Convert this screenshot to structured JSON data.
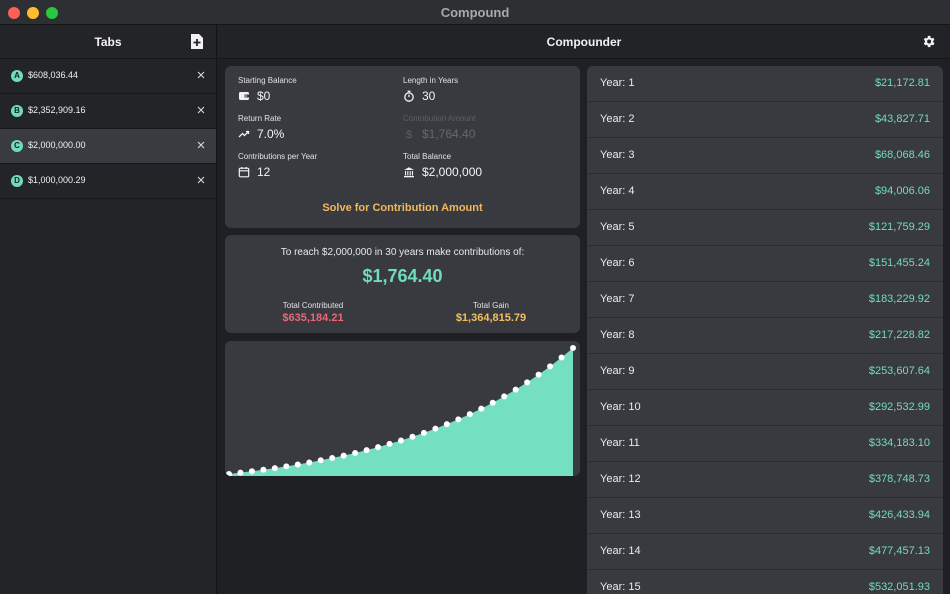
{
  "window": {
    "title": "Compound"
  },
  "sidebar": {
    "title": "Tabs",
    "tabs": [
      {
        "badge": "A",
        "label": "$608,036.44",
        "selected": false
      },
      {
        "badge": "B",
        "label": "$2,352,909.16",
        "selected": false
      },
      {
        "badge": "C",
        "label": "$2,000,000.00",
        "selected": true
      },
      {
        "badge": "D",
        "label": "$1,000,000.29",
        "selected": false
      }
    ]
  },
  "main": {
    "title": "Compounder"
  },
  "inputs": {
    "starting_balance": {
      "label": "Starting Balance",
      "value": "$0",
      "icon": "wallet-icon"
    },
    "length_years": {
      "label": "Length in Years",
      "value": "30",
      "icon": "stopwatch-icon"
    },
    "return_rate": {
      "label": "Return Rate",
      "value": "7.0%",
      "icon": "trend-up-icon"
    },
    "contribution_amount": {
      "label": "Contribution Amount",
      "value": "$1,764.40",
      "icon": "dollar-icon",
      "disabled": true
    },
    "contributions_per_year": {
      "label": "Contributions per Year",
      "value": "12",
      "icon": "calendar-icon"
    },
    "total_balance": {
      "label": "Total Balance",
      "value": "$2,000,000",
      "icon": "bank-icon"
    },
    "solve_label": "Solve for Contribution Amount"
  },
  "result": {
    "description": "To reach $2,000,000 in 30 years make contributions of:",
    "amount": "$1,764.40",
    "total_contributed_label": "Total Contributed",
    "total_contributed": "$635,184.21",
    "total_gain_label": "Total Gain",
    "total_gain": "$1,364,815.79"
  },
  "chart_data": {
    "type": "area",
    "x": [
      0,
      1,
      2,
      3,
      4,
      5,
      6,
      7,
      8,
      9,
      10,
      11,
      12,
      13,
      14,
      15,
      16,
      17,
      18,
      19,
      20,
      21,
      22,
      23,
      24,
      25,
      26,
      27,
      28,
      29,
      30
    ],
    "values": [
      0,
      21172.81,
      43827.71,
      68068.46,
      94006.06,
      121759.29,
      151455.24,
      183229.92,
      217228.82,
      253607.64,
      292532.99,
      334183.1,
      378748.73,
      426433.94,
      477457.13,
      532051.93,
      590469.71,
      652979.65,
      719861.35,
      791425.77,
      868004.31,
      949947.57,
      1037624.35,
      1131435.52,
      1231813.17,
      1339215.61,
      1454136.37,
      1577104.08,
      1708689.91,
      1849491.35,
      2000000.0
    ],
    "ylim": [
      0,
      2000000
    ],
    "grid": false,
    "colors": {
      "fill": "#75dfc2",
      "points": "#ffffff"
    }
  },
  "years": [
    {
      "label": "Year: 1",
      "value": "$21,172.81"
    },
    {
      "label": "Year: 2",
      "value": "$43,827.71"
    },
    {
      "label": "Year: 3",
      "value": "$68,068.46"
    },
    {
      "label": "Year: 4",
      "value": "$94,006.06"
    },
    {
      "label": "Year: 5",
      "value": "$121,759.29"
    },
    {
      "label": "Year: 6",
      "value": "$151,455.24"
    },
    {
      "label": "Year: 7",
      "value": "$183,229.92"
    },
    {
      "label": "Year: 8",
      "value": "$217,228.82"
    },
    {
      "label": "Year: 9",
      "value": "$253,607.64"
    },
    {
      "label": "Year: 10",
      "value": "$292,532.99"
    },
    {
      "label": "Year: 11",
      "value": "$334,183.10"
    },
    {
      "label": "Year: 12",
      "value": "$378,748.73"
    },
    {
      "label": "Year: 13",
      "value": "$426,433.94"
    },
    {
      "label": "Year: 14",
      "value": "$477,457.13"
    },
    {
      "label": "Year: 15",
      "value": "$532,051.93"
    }
  ],
  "colors": {
    "accent": "#6fdcbc",
    "warning": "#f0b95e",
    "negative": "#e8677a"
  }
}
